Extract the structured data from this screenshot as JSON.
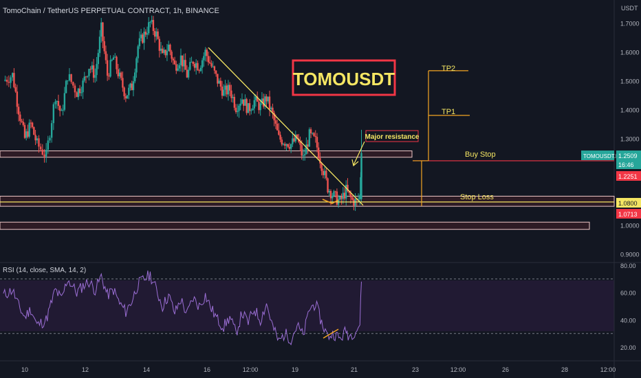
{
  "header": {
    "title": "TomoChain / TetherUS PERPETUAL CONTRACT, 1h, BINANCE",
    "currency": "USDT"
  },
  "annotations": {
    "symbol_box": "TOMOUSDT",
    "major_resistance": "Major resistance",
    "tp2": "TP2",
    "tp1": "TP1",
    "buy_stop": "Buy Stop",
    "stop_loss": "Stop Loss"
  },
  "price_axis": {
    "ticks": [
      "1.7000",
      "1.6000",
      "1.5000",
      "1.4000",
      "1.3000",
      "1.0000",
      "0.9000"
    ],
    "labels": [
      {
        "text": "TOMOUSDT.P",
        "color": "#26a69a"
      },
      {
        "text": "1.2509",
        "color": "#26a69a"
      },
      {
        "text": "16:46",
        "color": "#26a69a"
      },
      {
        "text": "1.2251",
        "color": "#f23645"
      },
      {
        "text": "1.0800",
        "color": "#f5e663"
      },
      {
        "text": "1.0713",
        "color": "#f23645"
      }
    ]
  },
  "rsi": {
    "header": "RSI (14, close, SMA, 14, 2)",
    "ticks": [
      "80.00",
      "60.00",
      "40.00",
      "20.00"
    ]
  },
  "time_axis": {
    "ticks": [
      "10",
      "12",
      "14",
      "16",
      "12:00",
      "19",
      "21",
      "23",
      "12:00",
      "26",
      "28",
      "12:00"
    ]
  },
  "chart_data": {
    "type": "candlestick",
    "symbol": "TOMOUSDT.P",
    "timeframe": "1h",
    "price_ylim": [
      0.87,
      1.78
    ],
    "rsi_ylim": [
      10,
      82
    ],
    "levels": {
      "buy_stop": 1.2251,
      "last_price": 1.2509,
      "stop_loss": 1.08,
      "low_mark": 1.0713,
      "tp1": 1.38,
      "tp2": 1.535
    },
    "zones": [
      {
        "from": 1.235,
        "to": 1.257
      },
      {
        "from": 1.065,
        "to": 1.1
      },
      {
        "from": 0.985,
        "to": 1.01
      }
    ],
    "trendline": {
      "from": [
        16,
        1.615
      ],
      "to": [
        20.4,
        1.14
      ]
    },
    "rsi_levels": [
      70,
      30
    ],
    "close_path": [
      [
        9.3,
        1.5
      ],
      [
        9.6,
        1.52
      ],
      [
        9.8,
        1.4
      ],
      [
        10.0,
        1.3
      ],
      [
        10.2,
        1.35
      ],
      [
        10.4,
        1.28
      ],
      [
        10.7,
        1.24
      ],
      [
        11.0,
        1.45
      ],
      [
        11.2,
        1.38
      ],
      [
        11.4,
        1.52
      ],
      [
        11.7,
        1.46
      ],
      [
        11.9,
        1.49
      ],
      [
        12.1,
        1.55
      ],
      [
        12.3,
        1.52
      ],
      [
        12.5,
        1.68
      ],
      [
        12.7,
        1.52
      ],
      [
        12.9,
        1.58
      ],
      [
        13.1,
        1.51
      ],
      [
        13.3,
        1.45
      ],
      [
        13.5,
        1.48
      ],
      [
        13.7,
        1.62
      ],
      [
        13.9,
        1.66
      ],
      [
        14.1,
        1.7
      ],
      [
        14.3,
        1.66
      ],
      [
        14.5,
        1.58
      ],
      [
        14.7,
        1.62
      ],
      [
        14.9,
        1.55
      ],
      [
        15.1,
        1.58
      ],
      [
        15.3,
        1.52
      ],
      [
        15.5,
        1.57
      ],
      [
        15.7,
        1.55
      ],
      [
        15.9,
        1.6
      ],
      [
        16.1,
        1.55
      ],
      [
        16.3,
        1.5
      ],
      [
        16.5,
        1.46
      ],
      [
        16.7,
        1.47
      ],
      [
        16.9,
        1.41
      ],
      [
        17.1,
        1.44
      ],
      [
        17.3,
        1.4
      ],
      [
        17.5,
        1.43
      ],
      [
        17.7,
        1.41
      ],
      [
        17.9,
        1.44
      ],
      [
        18.1,
        1.38
      ],
      [
        18.3,
        1.3
      ],
      [
        18.5,
        1.29
      ],
      [
        18.7,
        1.28
      ],
      [
        18.9,
        1.3
      ],
      [
        19.1,
        1.23
      ],
      [
        19.3,
        1.31
      ],
      [
        19.5,
        1.29
      ],
      [
        19.7,
        1.21
      ],
      [
        19.9,
        1.13
      ],
      [
        20.1,
        1.1
      ],
      [
        20.3,
        1.08
      ],
      [
        20.5,
        1.12
      ],
      [
        20.6,
        1.1
      ],
      [
        20.7,
        1.085
      ],
      [
        20.85,
        1.08
      ],
      [
        20.95,
        1.1
      ],
      [
        21.0,
        1.25
      ]
    ],
    "rsi_path": [
      [
        9.3,
        58
      ],
      [
        9.6,
        62
      ],
      [
        9.8,
        50
      ],
      [
        10.0,
        42
      ],
      [
        10.2,
        48
      ],
      [
        10.4,
        36
      ],
      [
        10.7,
        40
      ],
      [
        11.0,
        62
      ],
      [
        11.2,
        55
      ],
      [
        11.4,
        70
      ],
      [
        11.7,
        60
      ],
      [
        11.9,
        65
      ],
      [
        12.1,
        68
      ],
      [
        12.3,
        62
      ],
      [
        12.5,
        72
      ],
      [
        12.7,
        58
      ],
      [
        12.9,
        62
      ],
      [
        13.1,
        52
      ],
      [
        13.3,
        46
      ],
      [
        13.5,
        54
      ],
      [
        13.7,
        66
      ],
      [
        13.9,
        70
      ],
      [
        14.1,
        73
      ],
      [
        14.3,
        62
      ],
      [
        14.5,
        50
      ],
      [
        14.7,
        58
      ],
      [
        14.9,
        45
      ],
      [
        15.1,
        55
      ],
      [
        15.3,
        44
      ],
      [
        15.5,
        56
      ],
      [
        15.7,
        50
      ],
      [
        15.9,
        58
      ],
      [
        16.1,
        48
      ],
      [
        16.3,
        40
      ],
      [
        16.5,
        35
      ],
      [
        16.7,
        42
      ],
      [
        16.9,
        30
      ],
      [
        17.1,
        45
      ],
      [
        17.3,
        38
      ],
      [
        17.5,
        48
      ],
      [
        17.7,
        40
      ],
      [
        17.9,
        52
      ],
      [
        18.1,
        35
      ],
      [
        18.3,
        24
      ],
      [
        18.5,
        30
      ],
      [
        18.7,
        26
      ],
      [
        18.9,
        36
      ],
      [
        19.1,
        28
      ],
      [
        19.3,
        48
      ],
      [
        19.5,
        52
      ],
      [
        19.7,
        38
      ],
      [
        19.9,
        28
      ],
      [
        20.1,
        30
      ],
      [
        20.3,
        26
      ],
      [
        20.5,
        32
      ],
      [
        20.6,
        28
      ],
      [
        20.7,
        30
      ],
      [
        20.85,
        33
      ],
      [
        20.95,
        37
      ],
      [
        21.0,
        68
      ]
    ]
  }
}
